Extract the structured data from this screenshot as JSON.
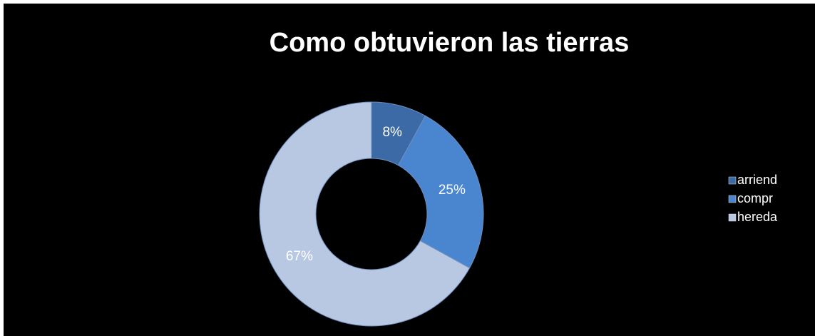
{
  "chart_data": {
    "type": "donut",
    "title": "Como obtuvieron las tierras",
    "categories": [
      "arriend",
      "compr",
      "hereda"
    ],
    "values": [
      8,
      25,
      67
    ],
    "value_labels": [
      "8%",
      "25%",
      "67%"
    ],
    "colors": [
      "#3b6aa6",
      "#4a86cf",
      "#b9c8e2"
    ],
    "legend": "right"
  }
}
